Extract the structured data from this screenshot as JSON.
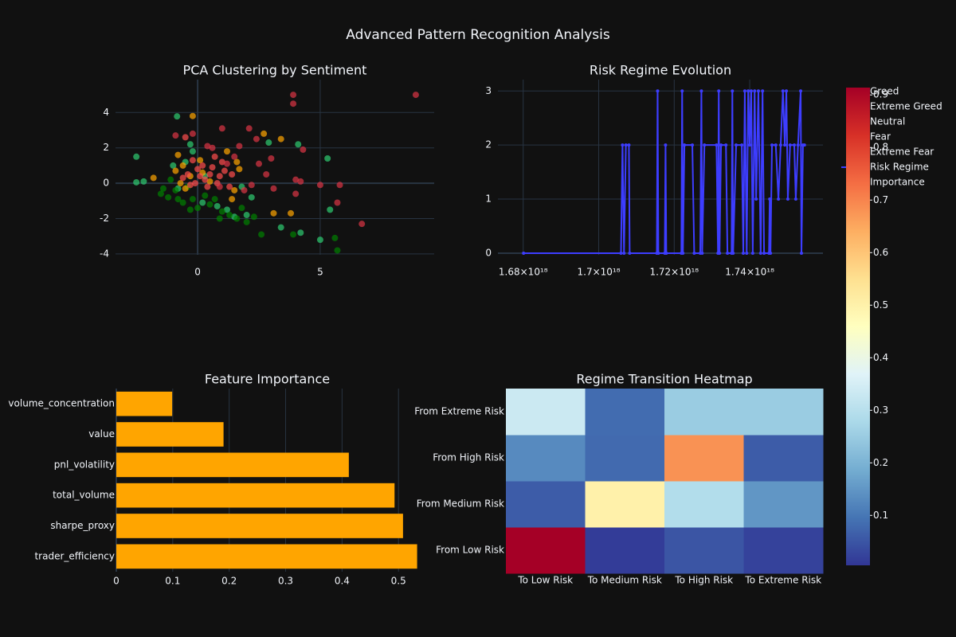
{
  "title": "Advanced Pattern Recognition Analysis",
  "chart_data": [
    {
      "type": "scatter",
      "title": "PCA Clustering by Sentiment",
      "xlim": [
        -3.35,
        9.65
      ],
      "ylim": [
        -4.05,
        5.86
      ],
      "xticks": [
        0,
        5
      ],
      "yticks": [
        -4,
        -2,
        0,
        2,
        4
      ],
      "grid": true,
      "series": [
        {
          "name": "Greed",
          "color": "#2ecc71",
          "x": [
            -2.5,
            -2.5,
            -2.2,
            5.3,
            5.4,
            4.2,
            5.0,
            3.4,
            2.9,
            4.1,
            1.2,
            2.2,
            0.8,
            -0.5,
            -0.3,
            0.3,
            -1.0,
            -0.8,
            1.5,
            2.0,
            0.2,
            -0.2,
            1.8,
            -0.84
          ],
          "y": [
            1.5,
            0.05,
            0.1,
            1.4,
            -1.5,
            -2.8,
            -3.2,
            -2.5,
            2.3,
            2.2,
            -1.5,
            -0.8,
            -1.3,
            1.2,
            2.2,
            0.4,
            1.0,
            -0.3,
            -1.9,
            -1.8,
            -1.1,
            1.8,
            -0.2,
            3.78
          ]
        },
        {
          "name": "Extreme Greed",
          "color": "#008000",
          "x": [
            -1.5,
            -0.8,
            -0.3,
            0.5,
            1.0,
            1.6,
            2.6,
            3.9,
            5.7,
            5.6,
            -1.2,
            -0.6,
            0.0,
            0.7,
            1.3,
            2.3,
            -0.9,
            0.3,
            -0.4,
            1.8,
            -1.1,
            0.9,
            -0.2,
            -1.4,
            2.0
          ],
          "y": [
            -0.6,
            -0.9,
            -1.5,
            -1.2,
            -1.6,
            -2.0,
            -2.9,
            -2.9,
            -3.8,
            -3.1,
            -0.8,
            -1.1,
            -1.4,
            -0.9,
            -1.8,
            -1.9,
            -0.4,
            -0.7,
            -0.2,
            -1.4,
            0.2,
            -2.0,
            -0.9,
            -0.3,
            -2.2
          ]
        },
        {
          "name": "Neutral",
          "color": "#ffa500",
          "x": [
            -0.2,
            3.4,
            3.8,
            3.1,
            2.7,
            1.5,
            1.2,
            1.6,
            -0.9,
            -0.6,
            -0.3,
            0.5,
            -0.8,
            -1.8,
            1.4,
            0.2,
            -0.5,
            1.7,
            0.1,
            -0.7
          ],
          "y": [
            3.8,
            2.5,
            -1.7,
            -1.7,
            2.8,
            -0.4,
            1.8,
            1.2,
            0.7,
            1.0,
            0.4,
            0.1,
            1.6,
            0.3,
            -0.9,
            0.6,
            -0.3,
            0.8,
            1.3,
            0.0
          ]
        },
        {
          "name": "Fear",
          "color": "#ff4d4d",
          "x": [
            -0.4,
            0.0,
            0.3,
            0.6,
            0.9,
            -0.2,
            0.4,
            1.1,
            0.2,
            -0.6,
            0.8,
            1.4,
            0.5,
            -0.1,
            1.0,
            -0.5,
            1.3,
            0.7,
            -0.3,
            0.1
          ],
          "y": [
            0.5,
            0.8,
            0.2,
            0.9,
            0.4,
            1.3,
            -0.2,
            0.7,
            1.0,
            0.3,
            0.0,
            0.5,
            0.5,
            0.0,
            1.2,
            2.6,
            -0.2,
            1.5,
            -0.1,
            0.4
          ]
        },
        {
          "name": "Extreme Fear",
          "color": "#dc3545",
          "x": [
            3.9,
            3.9,
            8.9,
            6.7,
            5.7,
            5.8,
            4.3,
            4.0,
            4.2,
            3.1,
            2.1,
            1.0,
            2.4,
            -0.2,
            1.7,
            2.5,
            3.0,
            1.2,
            0.6,
            2.2,
            0.4,
            1.5,
            5.0,
            4.0,
            2.8,
            -0.9,
            1.9,
            0.9
          ],
          "y": [
            5.0,
            4.5,
            5.0,
            -2.3,
            -1.1,
            -0.1,
            1.9,
            0.2,
            0.1,
            -0.3,
            3.1,
            3.1,
            2.5,
            2.8,
            2.1,
            1.1,
            1.4,
            1.1,
            2.0,
            -0.1,
            2.1,
            1.5,
            -0.1,
            -0.6,
            0.5,
            2.7,
            -0.4,
            -0.2
          ]
        }
      ]
    },
    {
      "type": "line",
      "title": "Risk Regime Evolution",
      "xlim": [
        1.6733e+18,
        1.7594e+18
      ],
      "ylim": [
        -0.03,
        3.21
      ],
      "xticks": [
        {
          "value": 1.68e+18,
          "label": "1.68×10¹⁸"
        },
        {
          "value": 1.7e+18,
          "label": "1.7×10¹⁸"
        },
        {
          "value": 1.72e+18,
          "label": "1.72×10¹⁸"
        },
        {
          "value": 1.74e+18,
          "label": "1.74×10¹⁸"
        }
      ],
      "yticks": [
        0,
        1,
        2,
        3
      ],
      "grid": true,
      "series": [
        {
          "name": "Risk Regime",
          "color": "#3d3dff",
          "x": [
            1.6801e+18,
            1.7059e+18,
            1.7063e+18,
            1.7067e+18,
            1.7072e+18,
            1.708e+18,
            1.7082e+18,
            1.7154e+18,
            1.7156e+18,
            1.7158e+18,
            1.7175e+18,
            1.7177e+18,
            1.7179e+18,
            1.7219e+18,
            1.7221e+18,
            1.7223e+18,
            1.7227e+18,
            1.7248e+18,
            1.7253e+18,
            1.7269e+18,
            1.7272e+18,
            1.7274e+18,
            1.728e+18,
            1.7312e+18,
            1.7316e+18,
            1.7318e+18,
            1.732e+18,
            1.7324e+18,
            1.7337e+18,
            1.7341e+18,
            1.7352e+18,
            1.7354e+18,
            1.7356e+18,
            1.7364e+18,
            1.7379e+18,
            1.7383e+18,
            1.7387e+18,
            1.7392e+18,
            1.7396e+18,
            1.74e+18,
            1.7404e+18,
            1.7408e+18,
            1.7413e+18,
            1.7417e+18,
            1.7423e+18,
            1.7429e+18,
            1.7434e+18,
            1.7438e+18,
            1.7451e+18,
            1.7453e+18,
            1.7455e+18,
            1.7459e+18,
            1.7469e+18,
            1.7476e+18,
            1.7482e+18,
            1.7488e+18,
            1.7493e+18,
            1.7497e+18,
            1.7501e+18,
            1.7507e+18,
            1.7518e+18,
            1.7522e+18,
            1.7528e+18,
            1.7535e+18,
            1.7537e+18,
            1.7541e+18,
            1.7545e+18
          ],
          "y": [
            0,
            0,
            2,
            0,
            2,
            2,
            0,
            0,
            3,
            0,
            0,
            2,
            0,
            0,
            3,
            0,
            2,
            2,
            0,
            0,
            3,
            0,
            2,
            2,
            0,
            3,
            0,
            2,
            2,
            0,
            0,
            3,
            0,
            2,
            2,
            0,
            3,
            0,
            3,
            2,
            3,
            0,
            3,
            1,
            3,
            0,
            3,
            0,
            0,
            1,
            0,
            2,
            2,
            1,
            2,
            3,
            2,
            3,
            1,
            2,
            2,
            1,
            2,
            3,
            0,
            2,
            2
          ]
        }
      ]
    },
    {
      "type": "hbar",
      "title": "Feature Importance",
      "categories": [
        "trader_efficiency",
        "sharpe_proxy",
        "total_volume",
        "pnl_volatility",
        "value",
        "volume_concentration"
      ],
      "xlim": [
        0,
        0.535
      ],
      "xticks": [
        0,
        0.1,
        0.2,
        0.3,
        0.4,
        0.5
      ],
      "grid": true,
      "series": [
        {
          "name": "Importance",
          "color": "#ffa500",
          "values": [
            0.533,
            0.508,
            0.493,
            0.412,
            0.19,
            0.099
          ]
        }
      ]
    },
    {
      "type": "heatmap",
      "title": "Regime Transition Heatmap",
      "x": [
        "To Low Risk",
        "To Medium Risk",
        "To High Risk",
        "To Extreme Risk"
      ],
      "y": [
        "From Low Risk",
        "From Medium Risk",
        "From High Risk",
        "From Extreme Risk"
      ],
      "z": [
        [
          0.914,
          0.013,
          0.05,
          0.023
        ],
        [
          0.06,
          0.5,
          0.29,
          0.15
        ],
        [
          0.13,
          0.08,
          0.68,
          0.06
        ],
        [
          0.333,
          0.083,
          0.25,
          0.25
        ]
      ],
      "zlim": [
        0.005,
        0.914
      ],
      "zticks": [
        0.1,
        0.2,
        0.3,
        0.4,
        0.5,
        0.6,
        0.7,
        0.8,
        0.9
      ],
      "colorscale": [
        [
          0,
          "#313695"
        ],
        [
          0.1,
          "#4575b4"
        ],
        [
          0.2,
          "#74add1"
        ],
        [
          0.3,
          "#abd9e9"
        ],
        [
          0.4,
          "#e0f3f8"
        ],
        [
          0.5,
          "#ffffbf"
        ],
        [
          0.6,
          "#fee090"
        ],
        [
          0.7,
          "#fdae61"
        ],
        [
          0.8,
          "#f46d43"
        ],
        [
          0.9,
          "#d73027"
        ],
        [
          1,
          "#a50026"
        ]
      ]
    }
  ]
}
